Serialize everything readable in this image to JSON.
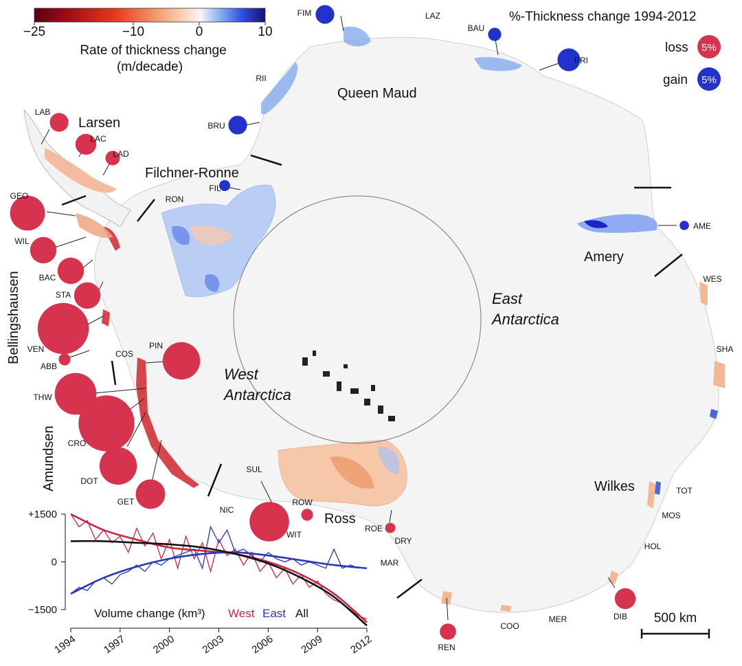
{
  "title": "%-Thickness change 1994-2012",
  "legend": {
    "loss_label": "loss",
    "gain_label": "gain",
    "bubble_value": "5%",
    "loss_color": "#d6334e",
    "gain_color": "#2233cc"
  },
  "colorbar": {
    "label_line1": "Rate of thickness change",
    "label_line2": "(m/decade)",
    "ticks": [
      "−25",
      "−10",
      "0",
      "10"
    ],
    "tick_values": [
      -25,
      -10,
      0,
      10
    ],
    "range": [
      -25,
      10
    ]
  },
  "regions": {
    "queen_maud": "Queen Maud",
    "larsen": "Larsen",
    "filchner_ronne": "Filchner-Ronne",
    "amery": "Amery",
    "east_line1": "East",
    "east_line2": "Antarctica",
    "west_line1": "West",
    "west_line2": "Antarctica",
    "ross": "Ross",
    "wilkes": "Wilkes",
    "bellingshausen": "Bellingshausen",
    "amundsen": "Amundsen"
  },
  "shelves": [
    {
      "code": "FIM",
      "type": "gain",
      "value": 2
    },
    {
      "code": "LAZ",
      "type": "none"
    },
    {
      "code": "BAU",
      "type": "gain",
      "value": 1
    },
    {
      "code": "PRI",
      "type": "gain",
      "value": 3
    },
    {
      "code": "RII",
      "type": "none"
    },
    {
      "code": "BRU",
      "type": "gain",
      "value": 2
    },
    {
      "code": "LAB",
      "type": "loss",
      "value": 2
    },
    {
      "code": "LAC",
      "type": "loss",
      "value": 2.5
    },
    {
      "code": "LAD",
      "type": "loss",
      "value": 1.2
    },
    {
      "code": "FIL",
      "type": "gain",
      "value": 0.7
    },
    {
      "code": "RON",
      "type": "none"
    },
    {
      "code": "GEO",
      "type": "loss",
      "value": 7
    },
    {
      "code": "WIL",
      "type": "loss",
      "value": 4
    },
    {
      "code": "BAC",
      "type": "loss",
      "value": 4
    },
    {
      "code": "STA",
      "type": "loss",
      "value": 4
    },
    {
      "code": "VEN",
      "type": "loss",
      "value": 15
    },
    {
      "code": "ABB",
      "type": "loss",
      "value": 0.8
    },
    {
      "code": "COS",
      "type": "none"
    },
    {
      "code": "PIN",
      "type": "loss",
      "value": 8
    },
    {
      "code": "THW",
      "type": "loss",
      "value": 10
    },
    {
      "code": "CRO",
      "type": "loss",
      "value": 18
    },
    {
      "code": "DOT",
      "type": "loss",
      "value": 8
    },
    {
      "code": "GET",
      "type": "loss",
      "value": 5
    },
    {
      "code": "SUL",
      "type": "none"
    },
    {
      "code": "NIC",
      "type": "none"
    },
    {
      "code": "WIT",
      "type": "loss",
      "value": 9
    },
    {
      "code": "ROW",
      "type": "loss",
      "value": 0.8
    },
    {
      "code": "ROE",
      "type": "loss",
      "value": 0.6
    },
    {
      "code": "DRY",
      "type": "none"
    },
    {
      "code": "MAR",
      "type": "none"
    },
    {
      "code": "REN",
      "type": "loss",
      "value": 1.5
    },
    {
      "code": "COO",
      "type": "none"
    },
    {
      "code": "MER",
      "type": "none"
    },
    {
      "code": "DIB",
      "type": "loss",
      "value": 2.5
    },
    {
      "code": "HOL",
      "type": "none"
    },
    {
      "code": "MOS",
      "type": "none"
    },
    {
      "code": "TOT",
      "type": "none"
    },
    {
      "code": "SHA",
      "type": "none"
    },
    {
      "code": "WES",
      "type": "none"
    },
    {
      "code": "AME",
      "type": "gain",
      "value": 0.5
    }
  ],
  "scale_bar": "500 km",
  "chart_data": {
    "type": "line",
    "title": "Volume change (km³)",
    "xlabel": "",
    "ylabel": "",
    "x_ticks": [
      1994,
      1997,
      2000,
      2003,
      2006,
      2009,
      2012
    ],
    "y_ticks": [
      "+1500",
      "0",
      "−1500"
    ],
    "y_tick_values": [
      1500,
      0,
      -1500
    ],
    "xlim": [
      1994,
      2012
    ],
    "ylim": [
      -1500,
      1500
    ],
    "series": [
      {
        "name": "West",
        "color": "#c9253f",
        "raw": {
          "x": [
            1994,
            1994.5,
            1995,
            1995.5,
            1996,
            1996.5,
            1997,
            1997.5,
            1998,
            1998.5,
            1999,
            1999.5,
            2000,
            2000.5,
            2001,
            2001.5,
            2002,
            2002.5,
            2003,
            2003.5,
            2004,
            2004.5,
            2005,
            2005.5,
            2006,
            2006.5,
            2007,
            2007.5,
            2008,
            2008.5,
            2009,
            2009.5,
            2010,
            2010.5,
            2011,
            2011.5,
            2012
          ],
          "y": [
            1500,
            1100,
            1300,
            700,
            1000,
            600,
            800,
            300,
            1050,
            500,
            900,
            100,
            700,
            -200,
            800,
            100,
            600,
            -300,
            700,
            200,
            400,
            -100,
            300,
            -300,
            0,
            -500,
            -200,
            -700,
            -400,
            -800,
            -600,
            -1000,
            -1200,
            -1300,
            -1500,
            -1700,
            -1800
          ]
        },
        "fit": {
          "x": [
            1994,
            1996,
            1998,
            2000,
            2002,
            2004,
            2006,
            2008,
            2010,
            2012
          ],
          "y": [
            1500,
            1000,
            700,
            450,
            350,
            250,
            0,
            -400,
            -1000,
            -1900
          ]
        }
      },
      {
        "name": "East",
        "color": "#2a35b8",
        "raw": {
          "x": [
            1994,
            1994.5,
            1995,
            1995.5,
            1996,
            1996.5,
            1997,
            1997.5,
            1998,
            1998.5,
            1999,
            1999.5,
            2000,
            2000.5,
            2001,
            2001.5,
            2002,
            2002.5,
            2003,
            2003.5,
            2004,
            2004.5,
            2005,
            2005.5,
            2006,
            2006.5,
            2007,
            2007.5,
            2008,
            2008.5,
            2009,
            2009.5,
            2010,
            2010.5,
            2011,
            2011.5
          ],
          "y": [
            -1000,
            -800,
            -900,
            -600,
            -500,
            -700,
            -400,
            -300,
            -100,
            -300,
            0,
            -100,
            100,
            200,
            300,
            400,
            -200,
            1100,
            600,
            1000,
            300,
            400,
            200,
            0,
            300,
            100,
            0,
            100,
            -100,
            0,
            -100,
            -200,
            400,
            -200,
            -100,
            -200
          ]
        },
        "fit": {
          "x": [
            1994,
            1996,
            1998,
            2000,
            2002,
            2004,
            2006,
            2008,
            2010,
            2012
          ],
          "y": [
            -1000,
            -500,
            -150,
            100,
            250,
            300,
            200,
            50,
            -100,
            -200
          ]
        }
      },
      {
        "name": "All",
        "color": "#111111",
        "fit": {
          "x": [
            1994,
            1996,
            1998,
            2000,
            2002,
            2004,
            2006,
            2008,
            2010,
            2012
          ],
          "y": [
            650,
            650,
            600,
            550,
            450,
            250,
            -50,
            -500,
            -1100,
            -2000
          ]
        }
      }
    ]
  }
}
